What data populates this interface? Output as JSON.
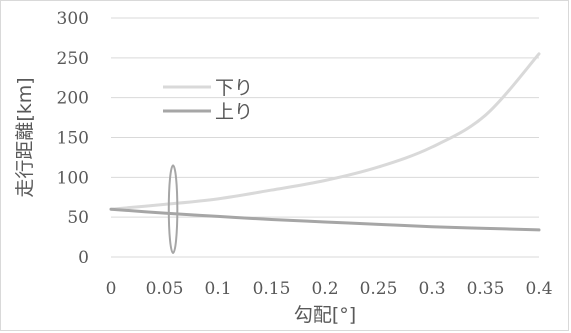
{
  "chart_data": {
    "type": "line",
    "xlabel": "勾配[°]",
    "ylabel": "走行距離[km]",
    "xlim": [
      0,
      0.4
    ],
    "ylim": [
      0,
      300
    ],
    "x_ticks": [
      "0",
      "0.05",
      "0.1",
      "0.15",
      "0.2",
      "0.25",
      "0.3",
      "0.35",
      "0.4"
    ],
    "y_ticks": [
      "0",
      "50",
      "100",
      "150",
      "200",
      "250",
      "300"
    ],
    "grid": "horizontal",
    "legend_position": "top-left",
    "series": [
      {
        "name": "下り",
        "color": "#d9d9d9",
        "x": [
          0,
          0.05,
          0.1,
          0.15,
          0.2,
          0.25,
          0.3,
          0.35,
          0.4
        ],
        "y": [
          60,
          66,
          73,
          84,
          96,
          113,
          138,
          178,
          255
        ]
      },
      {
        "name": "上り",
        "color": "#a6a6a6",
        "x": [
          0,
          0.05,
          0.1,
          0.15,
          0.2,
          0.25,
          0.3,
          0.35,
          0.4
        ],
        "y": [
          60,
          55,
          51,
          47,
          44,
          41,
          38,
          36,
          34
        ]
      }
    ],
    "annotation": {
      "shape": "ellipse",
      "center_x": 0.058,
      "center_y": 60,
      "rx": 0.004,
      "ry": 55,
      "color": "#a6a6a6"
    }
  }
}
